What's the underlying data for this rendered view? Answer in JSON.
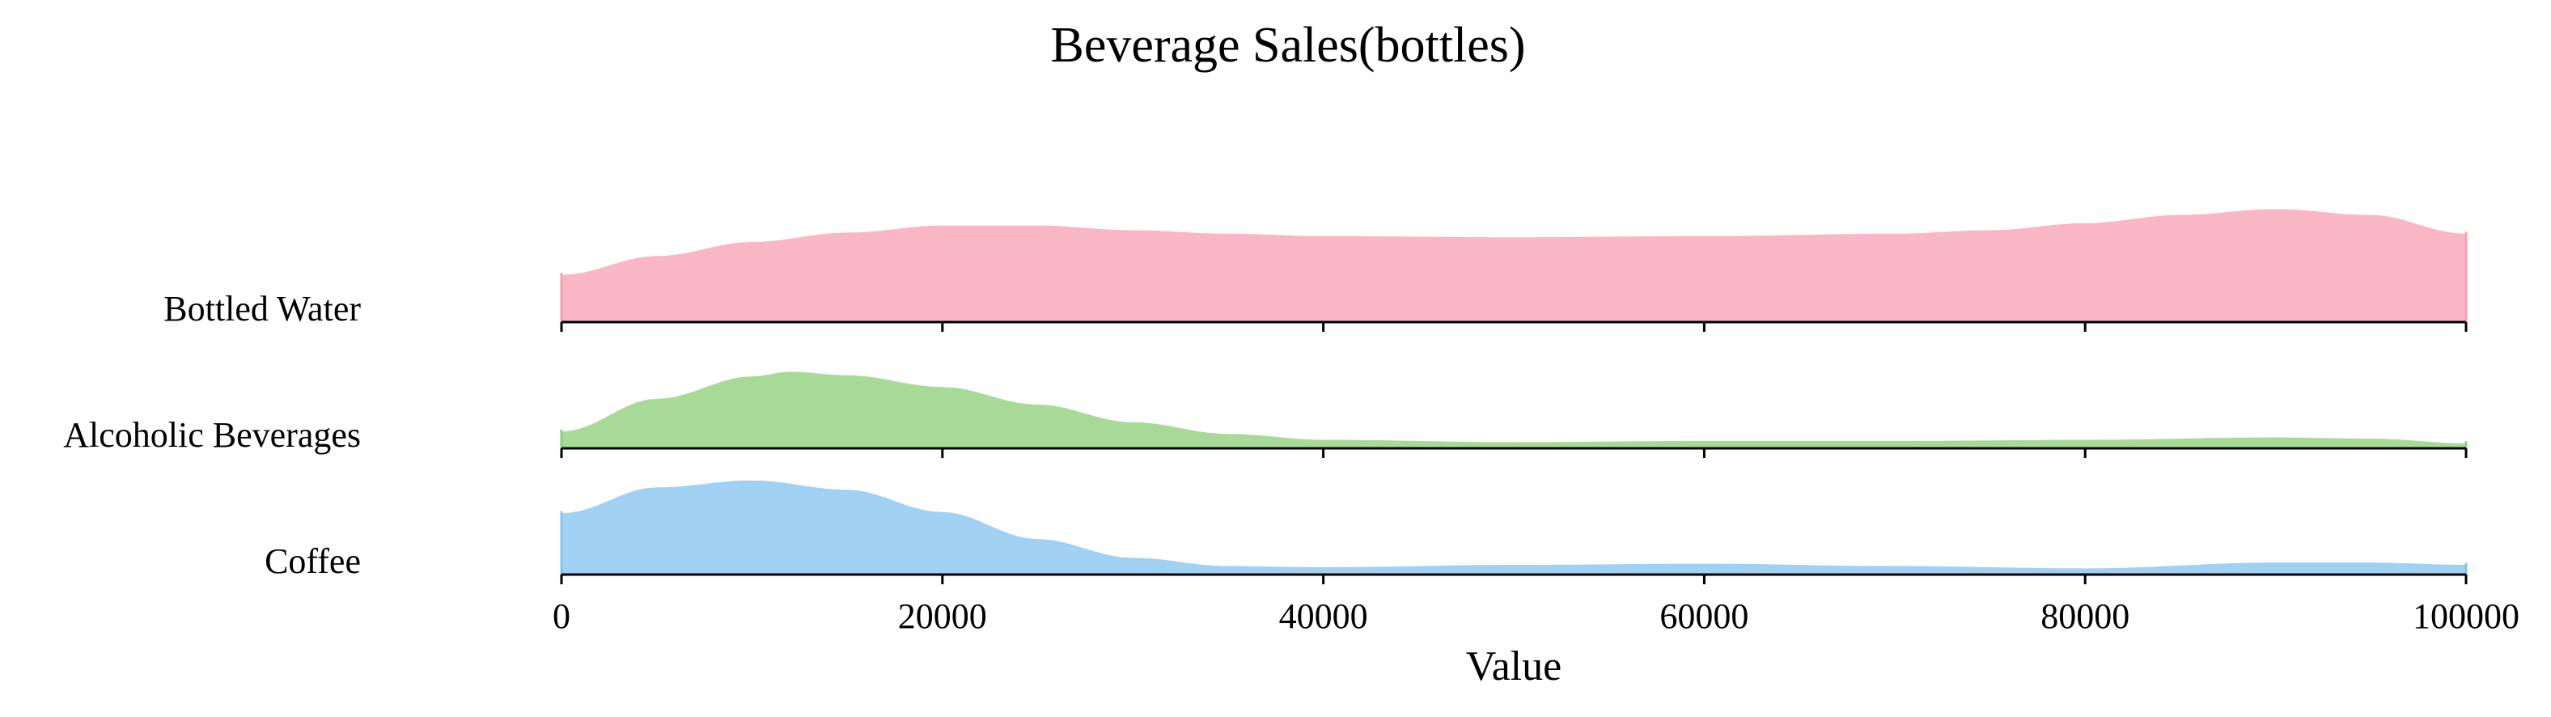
{
  "chart_data": {
    "type": "area",
    "title": "Beverage Sales(bottles)",
    "xlabel": "Value",
    "ylabel": "",
    "xlim": [
      0,
      100000
    ],
    "x_ticks": [
      0,
      20000,
      40000,
      60000,
      80000,
      100000
    ],
    "x_tick_labels": [
      "0",
      "20000",
      "40000",
      "60000",
      "80000",
      "100000"
    ],
    "grid": false,
    "legend": "none",
    "series": [
      {
        "name": "Bottled Water",
        "color": "#f7a1b3",
        "density_relative": [
          [
            0,
            0.42
          ],
          [
            5000,
            0.58
          ],
          [
            10000,
            0.7
          ],
          [
            15000,
            0.78
          ],
          [
            20000,
            0.84
          ],
          [
            25000,
            0.84
          ],
          [
            30000,
            0.8
          ],
          [
            35000,
            0.77
          ],
          [
            40000,
            0.75
          ],
          [
            50000,
            0.74
          ],
          [
            60000,
            0.75
          ],
          [
            70000,
            0.77
          ],
          [
            75000,
            0.8
          ],
          [
            80000,
            0.86
          ],
          [
            85000,
            0.93
          ],
          [
            90000,
            0.98
          ],
          [
            95000,
            0.93
          ],
          [
            100000,
            0.77
          ]
        ]
      },
      {
        "name": "Alcoholic Beverages",
        "color": "#8fcf7a",
        "density_relative": [
          [
            0,
            0.16
          ],
          [
            5000,
            0.44
          ],
          [
            10000,
            0.63
          ],
          [
            12000,
            0.67
          ],
          [
            15000,
            0.64
          ],
          [
            20000,
            0.54
          ],
          [
            25000,
            0.39
          ],
          [
            30000,
            0.24
          ],
          [
            35000,
            0.14
          ],
          [
            40000,
            0.09
          ],
          [
            50000,
            0.07
          ],
          [
            60000,
            0.08
          ],
          [
            70000,
            0.08
          ],
          [
            80000,
            0.09
          ],
          [
            90000,
            0.11
          ],
          [
            95000,
            0.1
          ],
          [
            100000,
            0.06
          ]
        ]
      },
      {
        "name": "Coffee",
        "color": "#85c4f0",
        "density_relative": [
          [
            0,
            0.54
          ],
          [
            5000,
            0.76
          ],
          [
            10000,
            0.82
          ],
          [
            15000,
            0.74
          ],
          [
            20000,
            0.55
          ],
          [
            25000,
            0.32
          ],
          [
            30000,
            0.16
          ],
          [
            35000,
            0.09
          ],
          [
            40000,
            0.08
          ],
          [
            50000,
            0.1
          ],
          [
            60000,
            0.11
          ],
          [
            70000,
            0.09
          ],
          [
            80000,
            0.07
          ],
          [
            90000,
            0.12
          ],
          [
            95000,
            0.12
          ],
          [
            100000,
            0.1
          ]
        ]
      }
    ]
  }
}
